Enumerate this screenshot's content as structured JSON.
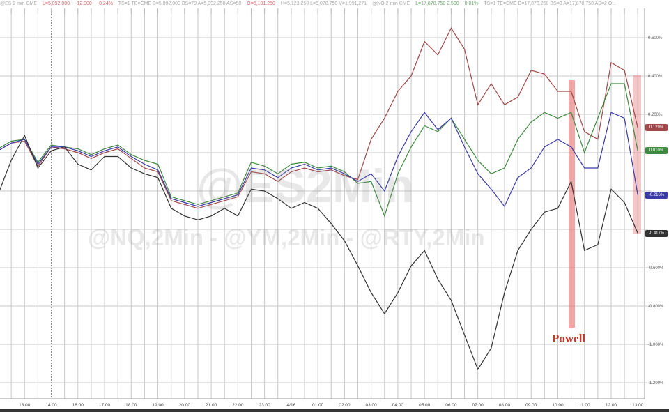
{
  "header": {
    "left_prefix": "@ES 2 min CME",
    "es_last": "L=5,092.000",
    "es_change": "-12.000",
    "es_pct": "-0.24%",
    "es_rest": "TS=1   TE=CME  B=5,092.000  BS=79   A=5,092.250  AS=58",
    "es_open": "O=5,101.250",
    "es_hl": "H=5,123.250  L=5,078.750  V=1,991,271",
    "right_prefix": "@NQ 2 min CME",
    "nq_last": "L=17,878.750  2.500",
    "nq_pct": "0.01%",
    "nq_rest": "TS=1   TE=CME  B=17,878.250  BS=3   A=17,878.750  AS=2  O..."
  },
  "watermarks": {
    "main": "@ES2Min",
    "secondary": "@NQ,2Min - @YM,2Min - @RTY,2Min"
  },
  "annotation": {
    "label": "Powell",
    "color": "#c0392b"
  },
  "chart_data": {
    "type": "line",
    "title": "",
    "xlabel": "",
    "ylabel": "",
    "ylim": [
      -1.3,
      0.72
    ],
    "grid": true,
    "y_axis_side": "right",
    "y_ticks": [
      0.6,
      0.4,
      0.2,
      -0.6,
      -0.8,
      -1.0,
      -1.2
    ],
    "y_tick_labels": [
      "0.600%",
      "0.400%",
      "0.200%",
      "-0.600%",
      "-0.800%",
      "-1.000%",
      "-1.200%"
    ],
    "x_tick_labels": [
      "13:00",
      "14:00",
      "16:00",
      "17:00",
      "18:00",
      "19:00",
      "20:00",
      "21:00",
      "22:00",
      "23:00",
      "4/16",
      "01:00",
      "02:00",
      "03:00",
      "04:00",
      "05:00",
      "06:00",
      "07:00",
      "08:00",
      "09:00",
      "10:00",
      "11:00",
      "12:00",
      "13:00"
    ],
    "x": [
      "12:00",
      "12:30",
      "13:00",
      "13:30",
      "14:00",
      "14:30",
      "16:00",
      "16:30",
      "17:00",
      "17:30",
      "18:00",
      "18:30",
      "19:00",
      "19:30",
      "20:00",
      "20:30",
      "21:00",
      "21:30",
      "22:00",
      "22:30",
      "23:00",
      "23:30",
      "00:00",
      "00:30",
      "01:00",
      "01:30",
      "02:00",
      "02:30",
      "03:00",
      "03:30",
      "04:00",
      "04:30",
      "05:00",
      "05:30",
      "06:00",
      "06:30",
      "07:00",
      "07:30",
      "08:00",
      "08:30",
      "09:00",
      "09:30",
      "10:00",
      "10:30",
      "11:00",
      "11:30",
      "12:00",
      "12:30",
      "13:00"
    ],
    "series": [
      {
        "color": "#a04848",
        "last_label": "0.129%",
        "values": [
          0.01,
          0.05,
          0.06,
          -0.07,
          0.03,
          0.02,
          0.0,
          -0.03,
          0.0,
          0.02,
          -0.03,
          -0.08,
          -0.1,
          -0.25,
          -0.27,
          -0.29,
          -0.27,
          -0.25,
          -0.23,
          -0.1,
          -0.11,
          -0.15,
          -0.1,
          -0.08,
          -0.1,
          -0.09,
          -0.12,
          -0.14,
          0.07,
          0.18,
          0.32,
          0.4,
          0.58,
          0.51,
          0.65,
          0.54,
          0.25,
          0.36,
          0.25,
          0.29,
          0.43,
          0.41,
          0.32,
          0.32,
          0.11,
          0.07,
          0.47,
          0.43,
          0.13
        ]
      },
      {
        "color": "#3f8a3f",
        "last_label": "0.010%",
        "values": [
          0.02,
          0.06,
          0.07,
          -0.05,
          0.04,
          0.03,
          0.02,
          -0.01,
          0.02,
          0.04,
          -0.01,
          -0.04,
          -0.06,
          -0.23,
          -0.25,
          -0.27,
          -0.25,
          -0.23,
          -0.21,
          -0.05,
          -0.07,
          -0.11,
          -0.06,
          -0.05,
          -0.08,
          -0.07,
          -0.1,
          -0.16,
          -0.15,
          -0.33,
          -0.11,
          0.03,
          0.14,
          0.11,
          0.18,
          0.07,
          -0.04,
          -0.11,
          -0.08,
          0.07,
          0.16,
          0.21,
          0.18,
          0.21,
          0.0,
          0.18,
          0.36,
          0.36,
          0.01
        ]
      },
      {
        "color": "#3a3aa8",
        "last_label": "-0.216%",
        "values": [
          0.01,
          0.05,
          0.07,
          -0.06,
          0.03,
          0.03,
          0.01,
          -0.02,
          0.01,
          0.03,
          -0.02,
          -0.06,
          -0.09,
          -0.24,
          -0.26,
          -0.28,
          -0.26,
          -0.24,
          -0.22,
          -0.08,
          -0.09,
          -0.13,
          -0.08,
          -0.06,
          -0.09,
          -0.08,
          -0.11,
          -0.15,
          -0.11,
          -0.2,
          -0.02,
          0.11,
          0.21,
          0.12,
          0.18,
          0.03,
          -0.11,
          -0.19,
          -0.28,
          -0.13,
          -0.08,
          0.03,
          0.07,
          0.03,
          -0.08,
          -0.08,
          0.21,
          0.18,
          -0.22
        ]
      },
      {
        "color": "#333333",
        "last_label": "-0.417%",
        "values": [
          -0.22,
          -0.04,
          0.09,
          -0.08,
          0.01,
          0.03,
          -0.06,
          -0.09,
          -0.02,
          -0.02,
          -0.08,
          -0.11,
          -0.13,
          -0.29,
          -0.33,
          -0.35,
          -0.33,
          -0.29,
          -0.33,
          -0.19,
          -0.2,
          -0.24,
          -0.29,
          -0.26,
          -0.29,
          -0.37,
          -0.46,
          -0.59,
          -0.73,
          -0.84,
          -0.73,
          -0.59,
          -0.51,
          -0.66,
          -0.77,
          -0.95,
          -1.13,
          -1.02,
          -0.73,
          -0.51,
          -0.4,
          -0.31,
          -0.29,
          -0.15,
          -0.51,
          -0.48,
          -0.19,
          -0.26,
          -0.42
        ]
      }
    ]
  }
}
